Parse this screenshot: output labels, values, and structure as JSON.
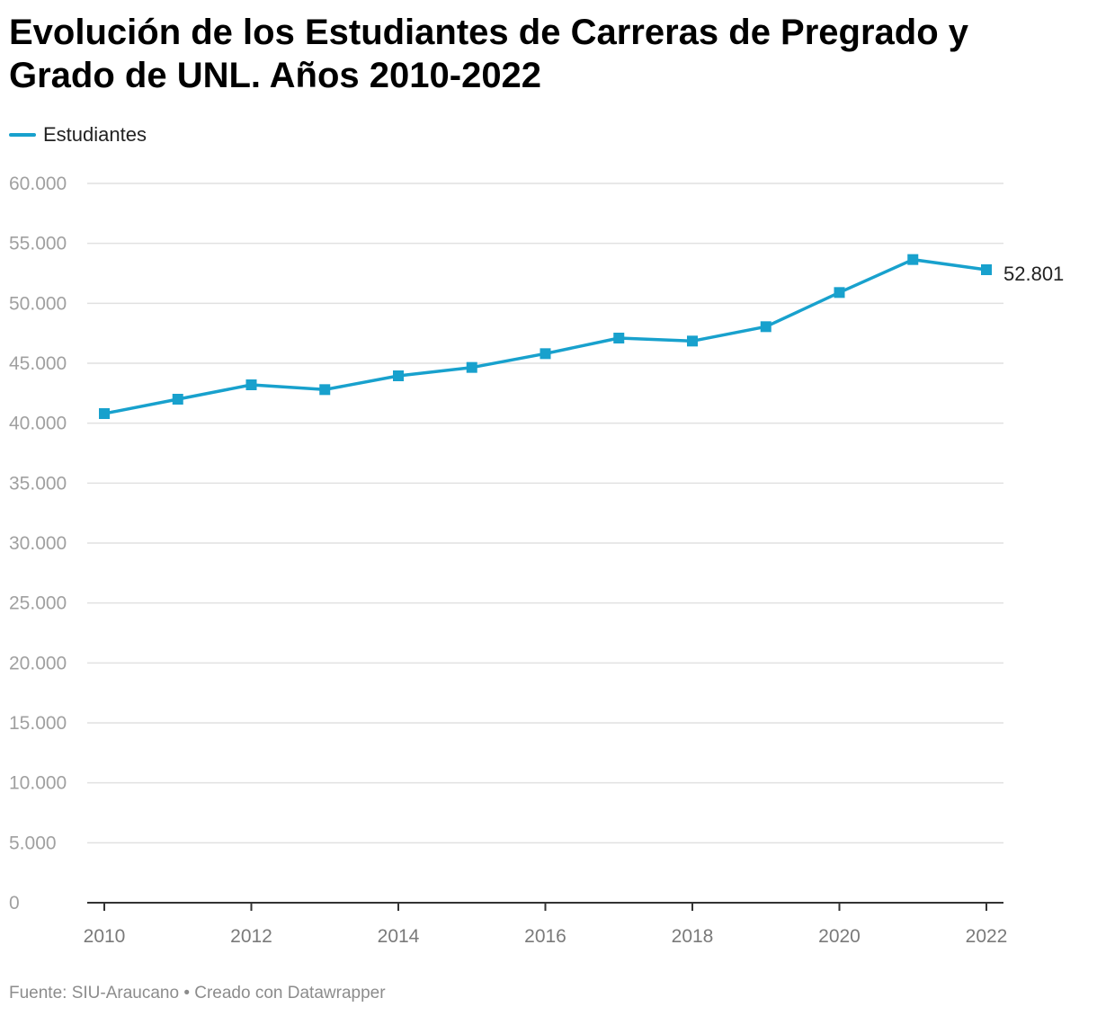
{
  "chart_data": {
    "type": "line",
    "title": "Evolución de los Estudiantes de Carreras de Pregrado y Grado de UNL. Años 2010-2022",
    "x": [
      2010,
      2011,
      2012,
      2013,
      2014,
      2015,
      2016,
      2017,
      2018,
      2019,
      2020,
      2021,
      2022
    ],
    "series": [
      {
        "name": "Estudiantes",
        "color": "#18a1cd",
        "values": [
          40800,
          42000,
          43200,
          42800,
          43950,
          44650,
          45800,
          47100,
          46850,
          48050,
          50900,
          53650,
          52801
        ]
      }
    ],
    "ylim": [
      0,
      60000
    ],
    "yticks": [
      0,
      5000,
      10000,
      15000,
      20000,
      25000,
      30000,
      35000,
      40000,
      45000,
      50000,
      55000,
      60000
    ],
    "ytick_labels": [
      "0",
      "5.000",
      "10.000",
      "15.000",
      "20.000",
      "25.000",
      "30.000",
      "35.000",
      "40.000",
      "45.000",
      "50.000",
      "55.000",
      "60.000"
    ],
    "xticks": [
      2010,
      2012,
      2014,
      2016,
      2018,
      2020,
      2022
    ],
    "xtick_labels": [
      "2010",
      "2012",
      "2014",
      "2016",
      "2018",
      "2020",
      "2022"
    ],
    "xlim": [
      2010,
      2022
    ],
    "end_label": "52.801",
    "grid": true,
    "legend_position": "top-left",
    "footer": "Fuente: SIU-Araucano • Creado con Datawrapper"
  }
}
